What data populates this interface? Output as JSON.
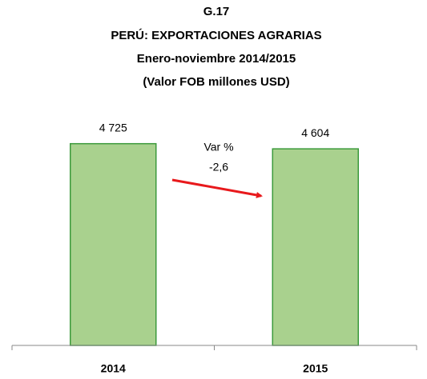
{
  "chart_data": {
    "type": "bar",
    "title": [
      "G.17",
      "PERÚ: EXPORTACIONES AGRARIAS",
      "Enero-noviembre 2014/2015",
      "(Valor FOB millones USD)"
    ],
    "categories": [
      "2014",
      "2015"
    ],
    "values": [
      4725,
      4604
    ],
    "value_labels": [
      "4 725",
      "4 604"
    ],
    "color": "#a9d18e",
    "edge_color": "#3c9a3c",
    "ylim": [
      0,
      5000
    ],
    "annotations": [
      "Var %",
      "-2,6"
    ],
    "arrow_color": "#e8191c"
  }
}
